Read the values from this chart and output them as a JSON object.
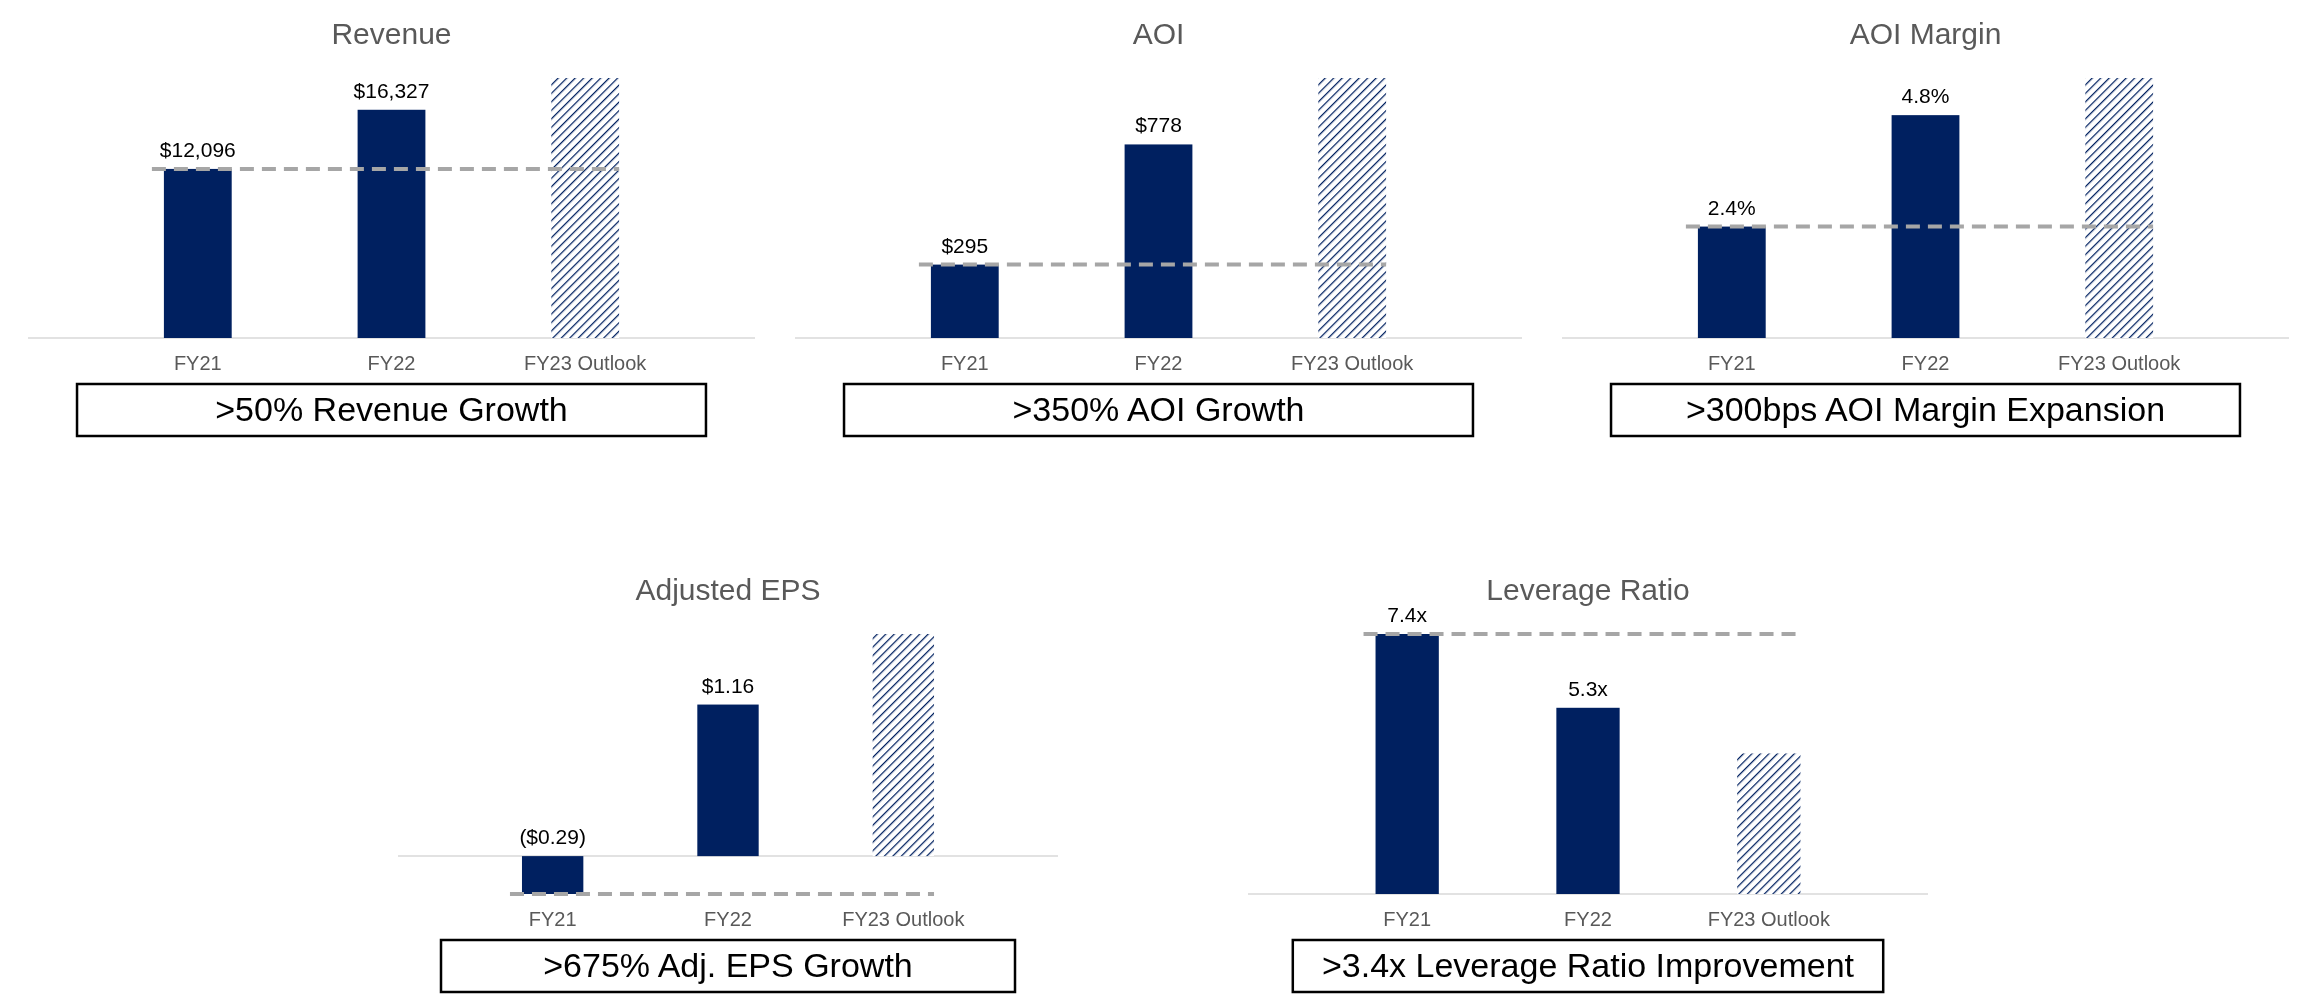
{
  "chart_data": [
    {
      "type": "bar",
      "title": "Revenue",
      "categories": [
        "FY21",
        "FY22",
        "FY23 Outlook"
      ],
      "values": [
        12096,
        16327,
        18600
      ],
      "value_labels": [
        "$12,096",
        "$16,327",
        null
      ],
      "colors": [
        "#002060",
        "#002060",
        "#002060"
      ],
      "ref_lines": [
        {
          "axis": "y",
          "value": 12096,
          "color": "#a6a6a6",
          "line_style": "dashed"
        }
      ],
      "annotations": [
        ">50% Revenue Growth"
      ]
    },
    {
      "type": "bar",
      "title": "AOI",
      "categories": [
        "FY21",
        "FY22",
        "FY23 Outlook"
      ],
      "values": [
        295,
        778,
        1045
      ],
      "value_labels": [
        "$295",
        "$778",
        null
      ],
      "colors": [
        "#002060",
        "#002060",
        "#002060"
      ],
      "ref_lines": [
        {
          "axis": "y",
          "value": 295,
          "color": "#a6a6a6",
          "line_style": "dashed"
        }
      ],
      "annotations": [
        ">350% AOI Growth"
      ]
    },
    {
      "type": "bar",
      "title": "AOI Margin",
      "categories": [
        "FY21",
        "FY22",
        "FY23 Outlook"
      ],
      "values": [
        2.4,
        4.8,
        5.6
      ],
      "value_labels": [
        "2.4%",
        "4.8%",
        null
      ],
      "colors": [
        "#002060",
        "#002060",
        "#002060"
      ],
      "ref_lines": [
        {
          "axis": "y",
          "value": 2.4,
          "color": "#a6a6a6",
          "line_style": "dashed"
        }
      ],
      "annotations": [
        ">300bps AOI Margin Expansion"
      ]
    },
    {
      "type": "bar",
      "title": "Adjusted EPS",
      "categories": [
        "FY21",
        "FY22",
        "FY23 Outlook"
      ],
      "values": [
        -0.29,
        1.16,
        1.7
      ],
      "value_labels": [
        "($0.29)",
        "$1.16",
        null
      ],
      "colors": [
        "#002060",
        "#002060",
        "#002060"
      ],
      "ref_lines": [
        {
          "axis": "y",
          "value": -0.29,
          "color": "#a6a6a6",
          "line_style": "dashed"
        }
      ],
      "annotations": [
        ">675% Adj. EPS Growth"
      ]
    },
    {
      "type": "bar",
      "title": "Leverage Ratio",
      "categories": [
        "FY21",
        "FY22",
        "FY23 Outlook"
      ],
      "values": [
        7.4,
        5.3,
        4.0
      ],
      "value_labels": [
        "7.4x",
        "5.3x",
        null
      ],
      "colors": [
        "#002060",
        "#002060",
        "#002060"
      ],
      "ref_lines": [
        {
          "axis": "y",
          "value": 7.4,
          "color": "#a6a6a6",
          "line_style": "dashed"
        }
      ],
      "annotations": [
        ">3.4x Leverage Ratio Improvement"
      ]
    }
  ]
}
